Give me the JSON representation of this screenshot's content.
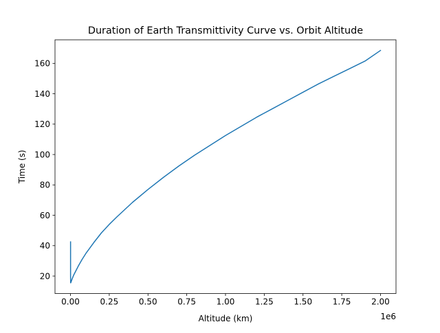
{
  "chart_data": {
    "type": "line",
    "title": "Duration of Earth Transmittivity Curve vs. Orbit Altitude",
    "xlabel": "Altitude (km)",
    "ylabel": "Time (s)",
    "x_offset_text": "1e6",
    "x_ticks": [
      0.0,
      0.25,
      0.5,
      0.75,
      1.0,
      1.25,
      1.5,
      1.75,
      2.0
    ],
    "x_tick_labels": [
      "0.00",
      "0.25",
      "0.50",
      "0.75",
      "1.00",
      "1.25",
      "1.50",
      "1.75",
      "2.00"
    ],
    "y_ticks": [
      20,
      40,
      60,
      80,
      100,
      120,
      140,
      160
    ],
    "y_tick_labels": [
      "20",
      "40",
      "60",
      "80",
      "100",
      "120",
      "140",
      "160"
    ],
    "xlim": [
      -100000,
      2100000
    ],
    "ylim": [
      8.5,
      175.5
    ],
    "grid": false,
    "series": [
      {
        "color": "#1f77b4",
        "x": [
          400,
          400,
          400,
          1000,
          2500,
          5000,
          10000,
          20000,
          30000,
          50000,
          75000,
          100000,
          150000,
          200000,
          250000,
          300000,
          400000,
          500000,
          600000,
          700000,
          800000,
          900000,
          1000000,
          1100000,
          1200000,
          1300000,
          1400000,
          1500000,
          1600000,
          1700000,
          1800000,
          1900000,
          2000000
        ],
        "y": [
          42.5,
          30,
          20,
          15.5,
          15.8,
          16.5,
          18,
          20.5,
          22.5,
          26.5,
          31,
          35,
          42,
          48.5,
          54,
          59,
          68.5,
          77,
          85,
          92.5,
          99.5,
          106,
          112.5,
          118.5,
          124.5,
          130,
          135.5,
          141,
          146.5,
          151.5,
          156.5,
          161.5,
          168.5
        ]
      }
    ]
  }
}
